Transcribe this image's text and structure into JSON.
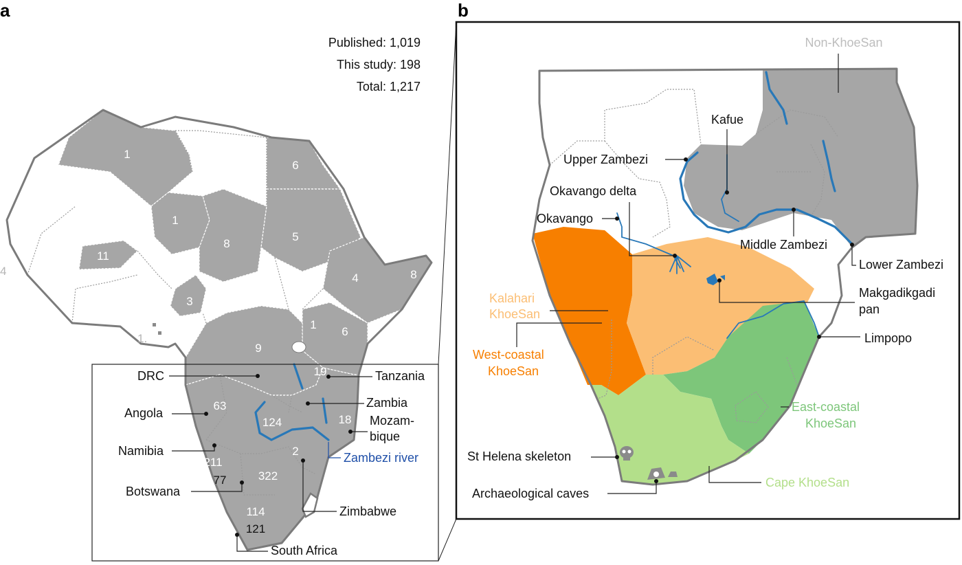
{
  "panels": {
    "a": "a",
    "b": "b"
  },
  "stats": {
    "published": "Published: 1,019",
    "this_study": "This study:  198",
    "total": "Total: 1,217"
  },
  "panel_a": {
    "country_counts": {
      "algeria": "1",
      "egypt": "6",
      "niger": "1",
      "chad": "8",
      "sudan": "5",
      "burkina": "11",
      "ethiopia": "4",
      "somalia": "8",
      "cameroon": "3",
      "uganda": "1",
      "kenya": "6",
      "drc": "9",
      "tanzania": "19",
      "angola": "63",
      "zambia": "124",
      "mozambique": "18",
      "zimbabwe": "2",
      "namibia_pub": "211",
      "namibia_new": "77",
      "botswana": "322",
      "southafrica_pub": "114",
      "southafrica_new": "121",
      "senegal_partial": "4",
      "cape_verde_partial": "1."
    },
    "labels": {
      "drc": "DRC",
      "tanzania": "Tanzania",
      "angola": "Angola",
      "zambia": "Zambia",
      "mozambique_1": "Mozam-",
      "mozambique_2": "bique",
      "namibia": "Namibia",
      "zambezi_river": "Zambezi river",
      "botswana": "Botswana",
      "zimbabwe": "Zimbabwe",
      "south_africa": "South Africa"
    }
  },
  "panel_b": {
    "labels": {
      "non_khoesan": "Non-KhoeSan",
      "kafue": "Kafue",
      "upper_zambezi": "Upper Zambezi",
      "okavango_delta": "Okavango delta",
      "okavango": "Okavango",
      "middle_zambezi": "Middle Zambezi",
      "lower_zambezi": "Lower Zambezi",
      "kalahari_1": "Kalahari",
      "kalahari_2": "KhoeSan",
      "makgadikgadi_1": "Makgadikgadi",
      "makgadikgadi_2": "pan",
      "limpopo": "Limpopo",
      "west_coastal_1": "West-coastal",
      "west_coastal_2": "KhoeSan",
      "east_coastal_1": "East-coastal",
      "east_coastal_2": "KhoeSan",
      "st_helena": "St Helena skeleton",
      "cape": "Cape KhoeSan",
      "caves": "Archaeological caves"
    }
  },
  "colors": {
    "sampled_country": "#a6a6a6",
    "coastline": "#7b7b7b",
    "river": "#2878b8",
    "river_label": "#1f4fa8",
    "west_coastal": "#f77f00",
    "kalahari": "#fbbe74",
    "east_coastal": "#7dc67a",
    "cape": "#b3df8a",
    "non_khoesan_label": "#bdbdbd"
  }
}
